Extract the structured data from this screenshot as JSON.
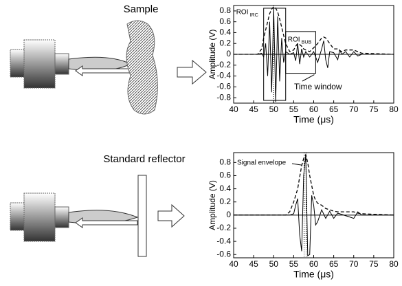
{
  "diagram": {
    "sample_label": "Sample",
    "reflector_label": "Standard reflector"
  },
  "chart_data": [
    {
      "type": "line",
      "xlabel": "Time (μs)",
      "ylabel": "Amplitude (V)",
      "xlim": [
        40,
        80
      ],
      "ylim": [
        -0.9,
        0.9
      ],
      "xticks": [
        40,
        45,
        50,
        55,
        60,
        65,
        70,
        75,
        80
      ],
      "yticks": [
        -0.8,
        -0.6,
        -0.4,
        -0.2,
        0,
        0.2,
        0.4,
        0.6,
        0.8
      ],
      "x": [
        40,
        46,
        47,
        47.5,
        48,
        48.5,
        49,
        49.5,
        50,
        50.5,
        51,
        51.5,
        52,
        52.5,
        53,
        54,
        55,
        55.5,
        56,
        56.5,
        57,
        57.5,
        58,
        59,
        60,
        61,
        62,
        62.5,
        63,
        63.5,
        64,
        65,
        66,
        66.5,
        67,
        68,
        69,
        70,
        71,
        72,
        80
      ],
      "series": [
        {
          "color": "#000",
          "dash": "solid",
          "values": [
            0,
            0,
            0.02,
            -0.05,
            0.2,
            -0.4,
            0.6,
            -0.7,
            0.85,
            -0.88,
            0.7,
            -0.5,
            0.3,
            -0.15,
            0.05,
            0,
            0.03,
            -0.12,
            0.2,
            -0.18,
            0.1,
            -0.05,
            0.05,
            -0.05,
            0.05,
            -0.15,
            0.1,
            0.25,
            -0.1,
            -0.25,
            0.05,
            0.03,
            -0.1,
            0.08,
            0,
            0.05,
            -0.05,
            0.05,
            -0.03,
            0,
            0
          ]
        },
        {
          "color": "#000",
          "dash": "dashed",
          "values": [
            0,
            0,
            0.1,
            0.3,
            0.45,
            0.6,
            0.75,
            0.83,
            0.88,
            0.85,
            0.78,
            0.65,
            0.5,
            0.35,
            0.2,
            0.05,
            0.08,
            0.15,
            0.2,
            0.18,
            0.15,
            0.1,
            0.08,
            0.05,
            0.12,
            0.2,
            0.3,
            0.32,
            0.3,
            0.25,
            0.2,
            0.1,
            0.1,
            0.07,
            0.05,
            0.08,
            0.08,
            0.08,
            0.05,
            0.02,
            0
          ]
        }
      ],
      "regions": [
        {
          "name": "ROI",
          "subscript": "IRC",
          "x": [
            47.5,
            53
          ],
          "y": [
            -0.85,
            0.85
          ]
        },
        {
          "name": "ROI",
          "subscript": "BUB",
          "x": [
            53,
            60.5
          ],
          "y": [
            -0.35,
            0.42
          ]
        }
      ],
      "vlines": [
        50
      ],
      "annotation": "Time window"
    },
    {
      "type": "line",
      "xlabel": "Time (μs)",
      "ylabel": "Amplitude (V)",
      "xlim": [
        40,
        80
      ],
      "ylim": [
        -0.65,
        0.95
      ],
      "xticks": [
        40,
        45,
        50,
        55,
        60,
        65,
        70,
        75,
        80
      ],
      "yticks": [
        -0.6,
        -0.4,
        -0.2,
        0,
        0.2,
        0.4,
        0.6,
        0.8
      ],
      "x": [
        40,
        53,
        54,
        55,
        55.5,
        56,
        56.5,
        57,
        57.5,
        58,
        58.5,
        59,
        59.5,
        60,
        60.5,
        61,
        62,
        63,
        64,
        65,
        66,
        70,
        71,
        72,
        80
      ],
      "series": [
        {
          "color": "#000",
          "dash": "solid",
          "values": [
            0,
            0,
            0,
            0.02,
            0.15,
            0.25,
            -0.3,
            -0.55,
            0.6,
            0.92,
            -0.62,
            -0.6,
            0.3,
            0.15,
            -0.15,
            -0.1,
            0.08,
            -0.05,
            0.06,
            -0.05,
            0.03,
            -0.05,
            0.05,
            0,
            0
          ]
        },
        {
          "color": "#000",
          "dash": "dashed",
          "values": [
            0,
            0,
            0.05,
            0.2,
            0.3,
            0.4,
            0.58,
            0.75,
            0.86,
            0.92,
            0.8,
            0.6,
            0.45,
            0.3,
            0.22,
            0.18,
            0.15,
            0.1,
            0.08,
            0.06,
            0.05,
            0.05,
            0.03,
            0.02,
            0
          ]
        }
      ],
      "regions": [],
      "vlines": [
        57.6,
        58.1
      ],
      "annotation": "Signal envelope"
    }
  ]
}
